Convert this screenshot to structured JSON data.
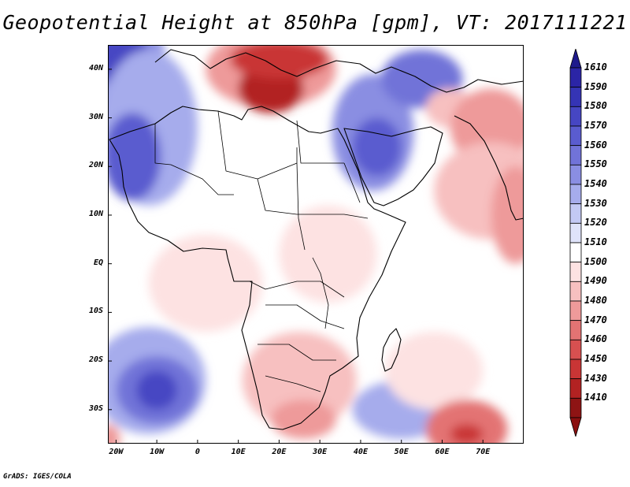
{
  "title": "Geopotential Height at 850hPa [gpm], VT: 2017111221",
  "credit": "GrADS: IGES/COLA",
  "map": {
    "lon_range": [
      -22,
      80
    ],
    "lat_range": [
      -37,
      45
    ],
    "lat_ticks": [
      {
        "value": 40,
        "label": "40N"
      },
      {
        "value": 30,
        "label": "30N"
      },
      {
        "value": 20,
        "label": "20N"
      },
      {
        "value": 10,
        "label": "10N"
      },
      {
        "value": 0,
        "label": "EQ"
      },
      {
        "value": -10,
        "label": "10S"
      },
      {
        "value": -20,
        "label": "20S"
      },
      {
        "value": -30,
        "label": "30S"
      }
    ],
    "lon_ticks": [
      {
        "value": -20,
        "label": "20W"
      },
      {
        "value": -10,
        "label": "10W"
      },
      {
        "value": 0,
        "label": "0"
      },
      {
        "value": 10,
        "label": "10E"
      },
      {
        "value": 20,
        "label": "20E"
      },
      {
        "value": 30,
        "label": "30E"
      },
      {
        "value": 40,
        "label": "40E"
      },
      {
        "value": 50,
        "label": "50E"
      },
      {
        "value": 60,
        "label": "60E"
      },
      {
        "value": 70,
        "label": "70E"
      }
    ]
  },
  "colorbar": {
    "labels": [
      "1610",
      "1590",
      "1580",
      "1570",
      "1560",
      "1550",
      "1540",
      "1530",
      "1520",
      "1510",
      "1500",
      "1490",
      "1480",
      "1470",
      "1460",
      "1450",
      "1430",
      "1410"
    ],
    "colors": [
      "#2b25a6",
      "#3534b5",
      "#4646c3",
      "#5a5ccf",
      "#7173d8",
      "#8a8ee2",
      "#a6acec",
      "#c3c9f4",
      "#dfe3fa",
      "#ffffff",
      "#fde2e2",
      "#f7c0c0",
      "#ee9a9a",
      "#e37373",
      "#d75050",
      "#c93535",
      "#b22222",
      "#8e1414"
    ],
    "top_arrow_color": "#1e1a8c",
    "bottom_arrow_color": "#8a1010"
  },
  "field": {
    "background": "#ffffff",
    "blobs": [
      {
        "lon": -22,
        "lat": 42,
        "rx": 14,
        "ry": 12,
        "color": "#8a8ee2"
      },
      {
        "lon": -20,
        "lat": 43,
        "rx": 8,
        "ry": 6,
        "color": "#4646c3"
      },
      {
        "lon": -12,
        "lat": 28,
        "rx": 12,
        "ry": 16,
        "color": "#a6acec"
      },
      {
        "lon": -16,
        "lat": 22,
        "rx": 7,
        "ry": 9,
        "color": "#5a5ccf"
      },
      {
        "lon": 18,
        "lat": 40,
        "rx": 16,
        "ry": 8,
        "color": "#ee9a9a"
      },
      {
        "lon": 18,
        "lat": 36,
        "rx": 8,
        "ry": 5,
        "color": "#b22222"
      },
      {
        "lon": 20,
        "lat": 42,
        "rx": 12,
        "ry": 4,
        "color": "#c93535"
      },
      {
        "lon": 43,
        "lat": 27,
        "rx": 10,
        "ry": 12,
        "color": "#8a8ee2"
      },
      {
        "lon": 44,
        "lat": 24,
        "rx": 6,
        "ry": 6,
        "color": "#5a5ccf"
      },
      {
        "lon": 55,
        "lat": 38,
        "rx": 10,
        "ry": 6,
        "color": "#7173d8"
      },
      {
        "lon": 62,
        "lat": 32,
        "rx": 6,
        "ry": 4,
        "color": "#f7c0c0"
      },
      {
        "lon": 72,
        "lat": 28,
        "rx": 10,
        "ry": 8,
        "color": "#ee9a9a"
      },
      {
        "lon": 72,
        "lat": 15,
        "rx": 14,
        "ry": 10,
        "color": "#f7c0c0"
      },
      {
        "lon": 78,
        "lat": 10,
        "rx": 6,
        "ry": 10,
        "color": "#ee9a9a"
      },
      {
        "lon": 32,
        "lat": 2,
        "rx": 12,
        "ry": 10,
        "color": "#fde2e2"
      },
      {
        "lon": 2,
        "lat": -4,
        "rx": 14,
        "ry": 10,
        "color": "#fde2e2"
      },
      {
        "lon": -12,
        "lat": -24,
        "rx": 14,
        "ry": 11,
        "color": "#a6acec"
      },
      {
        "lon": -10,
        "lat": -26,
        "rx": 10,
        "ry": 7,
        "color": "#7173d8"
      },
      {
        "lon": -10,
        "lat": -26,
        "rx": 5,
        "ry": 4,
        "color": "#4646c3"
      },
      {
        "lon": 25,
        "lat": -24,
        "rx": 14,
        "ry": 10,
        "color": "#f7c0c0"
      },
      {
        "lon": 26,
        "lat": -32,
        "rx": 8,
        "ry": 4,
        "color": "#ee9a9a"
      },
      {
        "lon": 50,
        "lat": -30,
        "rx": 12,
        "ry": 6,
        "color": "#a6acec"
      },
      {
        "lon": 58,
        "lat": -22,
        "rx": 12,
        "ry": 8,
        "color": "#fde2e2"
      },
      {
        "lon": 66,
        "lat": -34,
        "rx": 10,
        "ry": 6,
        "color": "#e37373"
      },
      {
        "lon": 66,
        "lat": -35,
        "rx": 4,
        "ry": 2,
        "color": "#c93535"
      },
      {
        "lon": -22,
        "lat": -36,
        "rx": 3,
        "ry": 3,
        "color": "#ee9a9a"
      }
    ]
  }
}
